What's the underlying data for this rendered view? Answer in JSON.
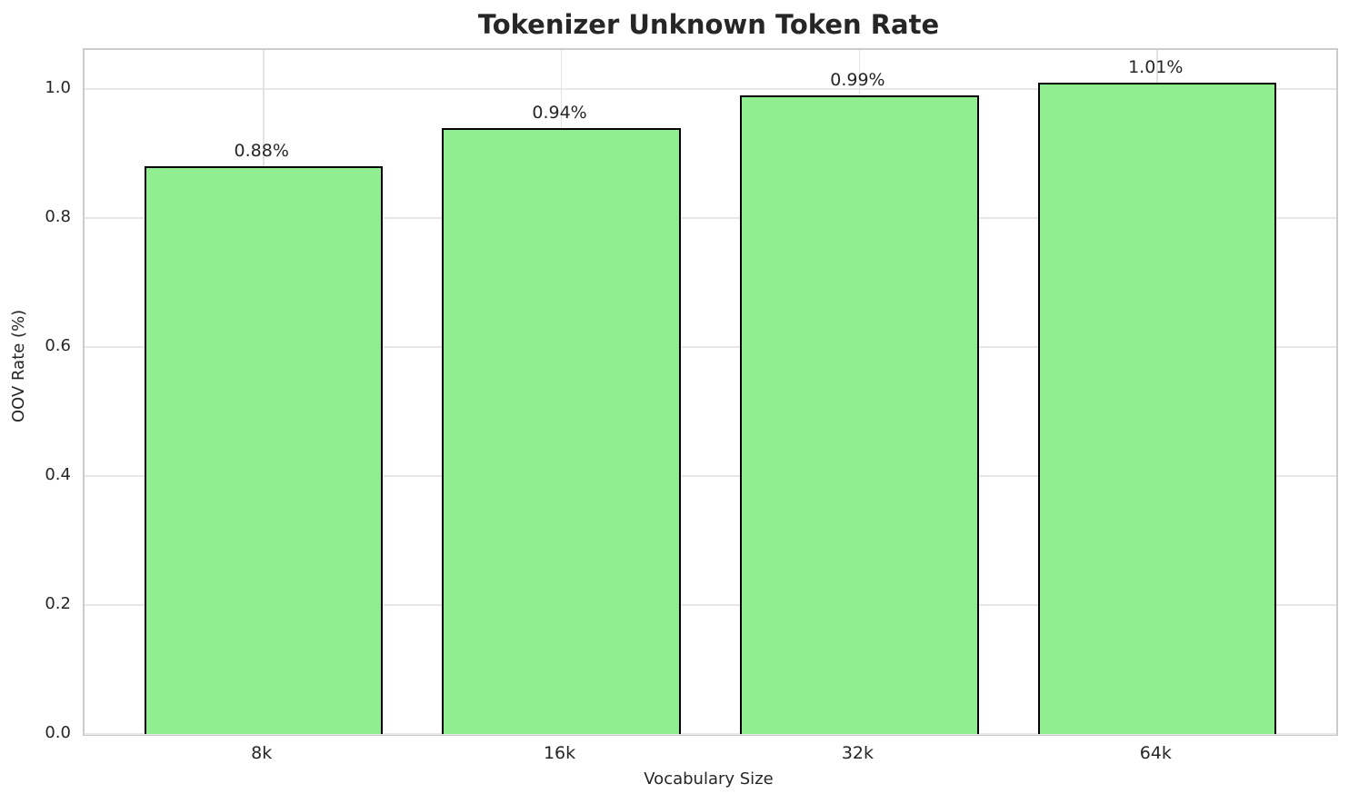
{
  "chart_data": {
    "type": "bar",
    "title": "Tokenizer Unknown Token Rate",
    "xlabel": "Vocabulary Size",
    "ylabel": "OOV Rate (%)",
    "categories": [
      "8k",
      "16k",
      "32k",
      "64k"
    ],
    "values": [
      0.88,
      0.94,
      0.99,
      1.01
    ],
    "value_labels": [
      "0.88%",
      "0.94%",
      "0.99%",
      "1.01%"
    ],
    "yticks": [
      0.0,
      0.2,
      0.4,
      0.6,
      0.8,
      1.0
    ],
    "ytick_labels": [
      "0.0",
      "0.2",
      "0.4",
      "0.6",
      "0.8",
      "1.0"
    ],
    "ylim": [
      0,
      1.0605
    ],
    "grid": true,
    "legend": null,
    "bar_color": "#90EE90",
    "bar_edge_color": "#000000",
    "grid_color": "#e7e7e7",
    "spine_color": "#cccccc",
    "text_color": "#262626",
    "background_color": "#ffffff"
  }
}
